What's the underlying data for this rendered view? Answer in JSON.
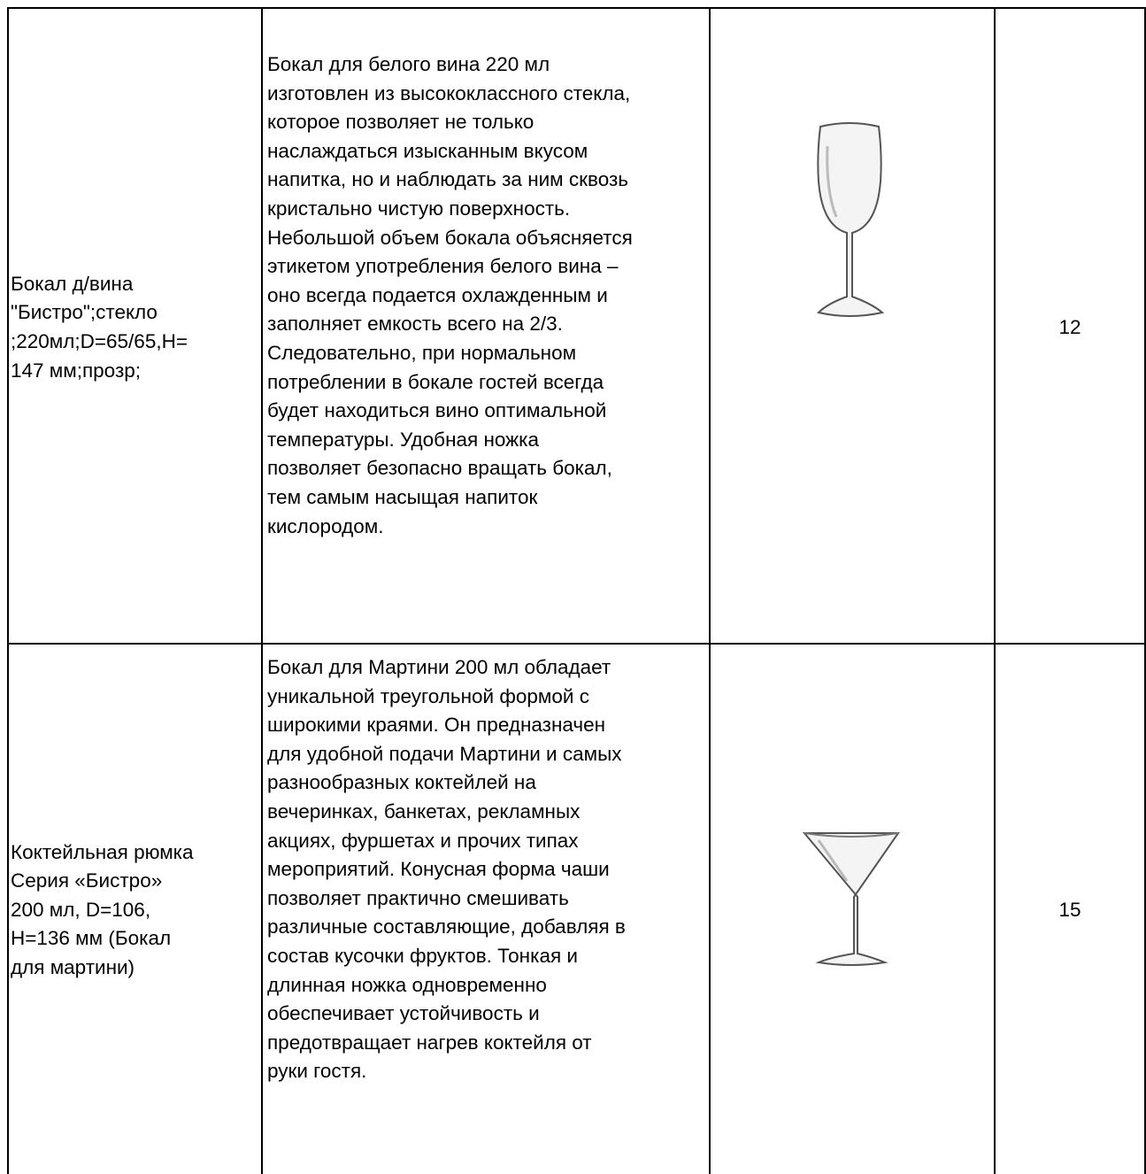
{
  "table": {
    "rows": [
      {
        "name": [
          "Бокал д/вина",
          "\"Бистро\";стекло",
          ";220мл;D=65/65,H=",
          "147 мм;прозр;"
        ],
        "description": [
          "Бокал для белого вина 220 мл",
          "изготовлен из высококлассного стекла,",
          "которое позволяет не только",
          "наслаждаться изысканным вкусом",
          "напитка, но и наблюдать за ним сквозь",
          "кристально чистую поверхность.",
          "Небольшой объем бокала объясняется",
          "этикетом употребления белого вина –",
          "оно всегда подается охлажденным и",
          "заполняет емкость всего на 2/3.",
          "Следовательно, при нормальном",
          "потреблении в бокале гостей всегда",
          "будет находиться вино оптимальной",
          "температуры. Удобная ножка",
          "позволяет безопасно вращать бокал,",
          "тем самым насыщая напиток",
          "кислородом."
        ],
        "quantity": 12
      },
      {
        "name": [
          "Коктейльная рюмка",
          "Серия «Бистро»",
          "200 мл, D=106,",
          "H=136 мм (Бокал",
          "для мартини)"
        ],
        "description": [
          "Бокал для Мартини 200 мл обладает",
          "уникальной треугольной формой с",
          "широкими краями. Он предназначен",
          "для удобной подачи Мартини и самых",
          "разнообразных коктейлей на",
          "вечеринках, банкетах, рекламных",
          "акциях, фуршетах и прочих типах",
          "мероприятий. Конусная форма чаши",
          "позволяет практично смешивать",
          "различные составляющие, добавляя в",
          "состав кусочки фруктов. Тонкая и",
          "длинная ножка одновременно",
          "обеспечивает устойчивость и",
          "предотвращает нагрев коктейля от",
          "руки гостя."
        ],
        "quantity": 15
      }
    ]
  }
}
